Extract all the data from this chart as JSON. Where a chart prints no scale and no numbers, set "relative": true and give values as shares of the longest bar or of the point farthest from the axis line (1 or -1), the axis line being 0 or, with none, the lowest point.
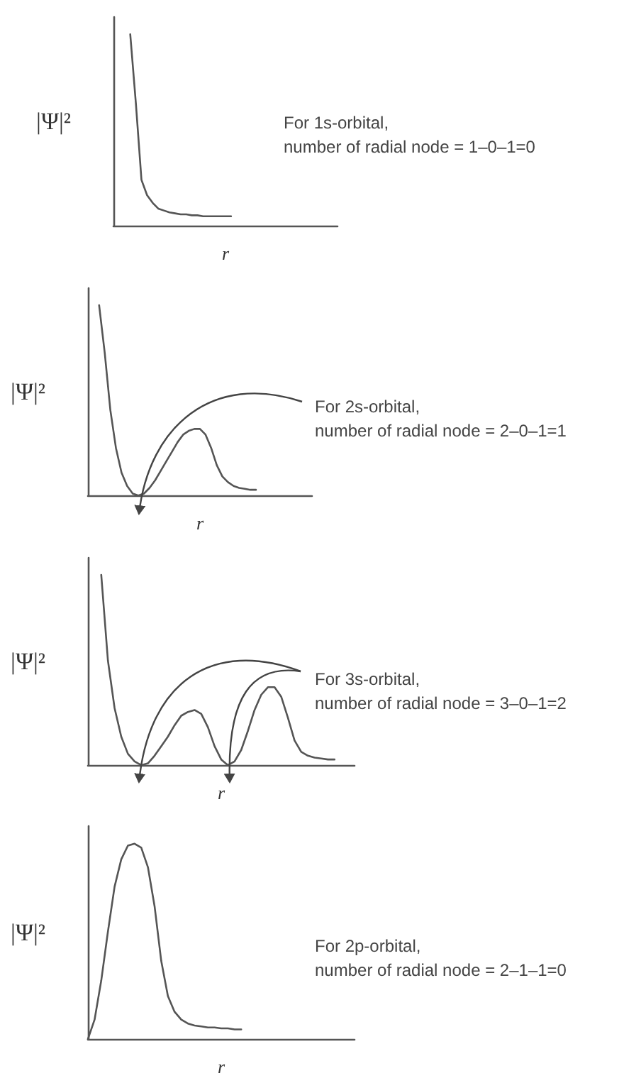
{
  "chart_data": [
    {
      "type": "line",
      "relative": true,
      "color": "#555555",
      "xlabel": "r",
      "ylabel": "|Ψ|²",
      "annotations": [
        "For 1s-orbital,\nnumber of radial node = 1–0–1=0"
      ],
      "categories": [
        null,
        null,
        null,
        null,
        null,
        null,
        null,
        null,
        null,
        null,
        null,
        null,
        null,
        null,
        null,
        null,
        null,
        null,
        null,
        null,
        null,
        null,
        null,
        null,
        null,
        null,
        null,
        null,
        null,
        null,
        null,
        null,
        null,
        null,
        null,
        null,
        null,
        null,
        null,
        null,
        null
      ],
      "values": [
        null,
        null,
        null,
        1.0,
        0.64,
        0.24,
        0.16,
        0.12,
        0.09,
        0.08,
        0.07,
        0.065,
        0.06,
        0.06,
        0.055,
        0.055,
        0.05,
        0.05,
        0.05,
        0.05,
        0.05,
        0.05,
        null,
        null,
        null,
        null,
        null,
        null,
        null,
        null,
        null,
        null,
        null,
        null,
        null,
        null,
        null,
        null,
        null,
        null,
        null
      ]
    },
    {
      "type": "line",
      "relative": true,
      "color": "#555555",
      "xlabel": "r",
      "ylabel": "|Ψ|²",
      "annotations": [
        "For 2s-orbital,\nnumber of radial node = 2–0–1=1"
      ],
      "categories": [
        null,
        null,
        null,
        null,
        null,
        null,
        null,
        null,
        null,
        null,
        null,
        null,
        null,
        null,
        null,
        null,
        null,
        null,
        null,
        null,
        null,
        null,
        null,
        null,
        null,
        null,
        null,
        null,
        null,
        null,
        null,
        null,
        null,
        null,
        null,
        null,
        null,
        null,
        null,
        null,
        null
      ],
      "values": [
        null,
        null,
        1.0,
        0.75,
        0.45,
        0.25,
        0.12,
        0.05,
        0.01,
        0,
        0.01,
        0.04,
        0.08,
        0.13,
        0.18,
        0.23,
        0.28,
        0.32,
        0.34,
        0.35,
        0.35,
        0.32,
        0.25,
        0.16,
        0.1,
        0.07,
        0.05,
        0.04,
        0.035,
        0.03,
        0.03,
        null,
        null,
        null,
        null,
        null,
        null,
        null,
        null,
        null,
        null
      ]
    },
    {
      "type": "line",
      "relative": true,
      "color": "#555555",
      "xlabel": "r",
      "ylabel": "|Ψ|²",
      "annotations": [
        "For 3s-orbital,\nnumber of radial node = 3–0–1=2"
      ],
      "categories": [
        null,
        null,
        null,
        null,
        null,
        null,
        null,
        null,
        null,
        null,
        null,
        null,
        null,
        null,
        null,
        null,
        null,
        null,
        null,
        null,
        null,
        null,
        null,
        null,
        null,
        null,
        null,
        null,
        null,
        null,
        null,
        null,
        null,
        null,
        null,
        null,
        null,
        null,
        null,
        null,
        null
      ],
      "values": [
        null,
        null,
        1.0,
        0.55,
        0.3,
        0.15,
        0.06,
        0.02,
        0,
        0.01,
        0.05,
        0.1,
        0.15,
        0.21,
        0.26,
        0.28,
        0.29,
        0.27,
        0.2,
        0.1,
        0.03,
        0,
        0.02,
        0.08,
        0.18,
        0.29,
        0.37,
        0.41,
        0.41,
        0.36,
        0.25,
        0.13,
        0.07,
        0.05,
        0.04,
        0.035,
        0.03,
        0.03,
        null,
        null,
        null
      ]
    },
    {
      "type": "line",
      "relative": true,
      "color": "#555555",
      "xlabel": "r",
      "ylabel": "|Ψ|²",
      "annotations": [
        "For 2p-orbital,\nnumber of radial node = 2–1–1=0"
      ],
      "categories": [
        null,
        null,
        null,
        null,
        null,
        null,
        null,
        null,
        null,
        null,
        null,
        null,
        null,
        null,
        null,
        null,
        null,
        null,
        null,
        null,
        null,
        null,
        null,
        null,
        null,
        null,
        null,
        null,
        null,
        null,
        null,
        null,
        null,
        null,
        null,
        null,
        null,
        null,
        null,
        null,
        null
      ],
      "values": [
        0,
        0.1,
        0.3,
        0.55,
        0.78,
        0.92,
        0.99,
        1.0,
        0.98,
        0.88,
        0.68,
        0.4,
        0.22,
        0.14,
        0.1,
        0.08,
        0.07,
        0.065,
        0.06,
        0.06,
        0.055,
        0.055,
        0.05,
        0.05,
        null,
        null,
        null,
        null,
        null,
        null,
        null,
        null,
        null,
        null,
        null,
        null,
        null,
        null,
        null,
        null,
        null
      ]
    }
  ]
}
